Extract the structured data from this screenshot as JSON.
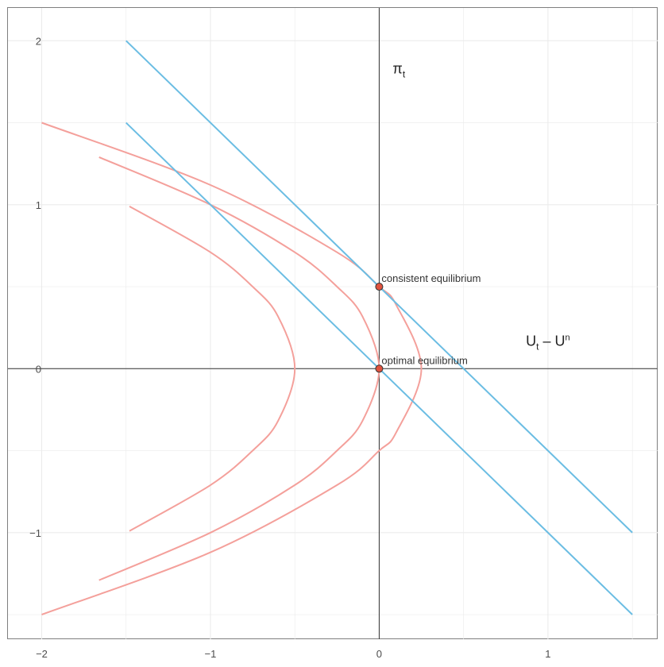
{
  "chart_data": {
    "type": "line",
    "title": "",
    "xlim": [
      -2.2,
      1.65
    ],
    "ylim": [
      -1.65,
      2.2
    ],
    "x_ticks": [
      -2,
      -1,
      0,
      1
    ],
    "y_ticks": [
      -1,
      0,
      1,
      2
    ],
    "x_tick_labels": [
      "−2",
      "−1",
      "0",
      "1"
    ],
    "y_tick_labels": [
      "−1",
      "0",
      "1",
      "2"
    ],
    "grid": true,
    "axis_lines": {
      "x": 0,
      "y": 0
    },
    "ylabel": {
      "base": "π",
      "sub": "t"
    },
    "xlabel": {
      "part1": "U",
      "sub": "t",
      "part2": " – U",
      "sup": "n"
    },
    "colors": {
      "indifference_curve": "#f4a09b",
      "phillips_curve": "#6bbde3",
      "point_fill": "#e0533f",
      "point_stroke": "#333333",
      "axis": "#333333",
      "grid": "#ebebeb"
    },
    "indifference_curves": [
      {
        "vertex_x": -0.5,
        "points": [
          [
            -1.48,
            0.99
          ],
          [
            -1.0,
            0.71
          ],
          [
            -0.75,
            0.5
          ],
          [
            -0.6,
            0.32
          ],
          [
            -0.5,
            0.0
          ],
          [
            -0.6,
            -0.32
          ],
          [
            -0.75,
            -0.5
          ],
          [
            -1.0,
            -0.71
          ],
          [
            -1.48,
            -0.99
          ]
        ]
      },
      {
        "vertex_x": 0.0,
        "points": [
          [
            -1.66,
            1.29
          ],
          [
            -1.0,
            1.0
          ],
          [
            -0.5,
            0.71
          ],
          [
            -0.25,
            0.5
          ],
          [
            -0.1,
            0.32
          ],
          [
            0.0,
            0.0
          ],
          [
            -0.1,
            -0.32
          ],
          [
            -0.25,
            -0.5
          ],
          [
            -0.5,
            -0.71
          ],
          [
            -1.0,
            -1.0
          ],
          [
            -1.66,
            -1.29
          ]
        ]
      },
      {
        "vertex_x": 0.25,
        "points": [
          [
            -2.0,
            1.5
          ],
          [
            -1.0,
            1.12
          ],
          [
            -0.25,
            0.71
          ],
          [
            0.0,
            0.5
          ],
          [
            0.1,
            0.39
          ],
          [
            0.25,
            0.0
          ],
          [
            0.1,
            -0.39
          ],
          [
            0.0,
            -0.5
          ],
          [
            -0.25,
            -0.71
          ],
          [
            -1.0,
            -1.12
          ],
          [
            -2.0,
            -1.5
          ]
        ]
      }
    ],
    "phillips_curves": [
      {
        "points": [
          [
            -1.5,
            2.0
          ],
          [
            1.5,
            -1.0
          ]
        ]
      },
      {
        "points": [
          [
            -1.5,
            1.5
          ],
          [
            1.5,
            -1.5
          ]
        ]
      }
    ],
    "points": [
      {
        "x": 0,
        "y": 0.5,
        "label": "consistent equilibrium"
      },
      {
        "x": 0,
        "y": 0,
        "label": "optimal equilibrium"
      }
    ],
    "axis_name_positions": {
      "pi": [
        0.08,
        1.8
      ],
      "u": [
        1.0,
        0.14
      ]
    }
  }
}
